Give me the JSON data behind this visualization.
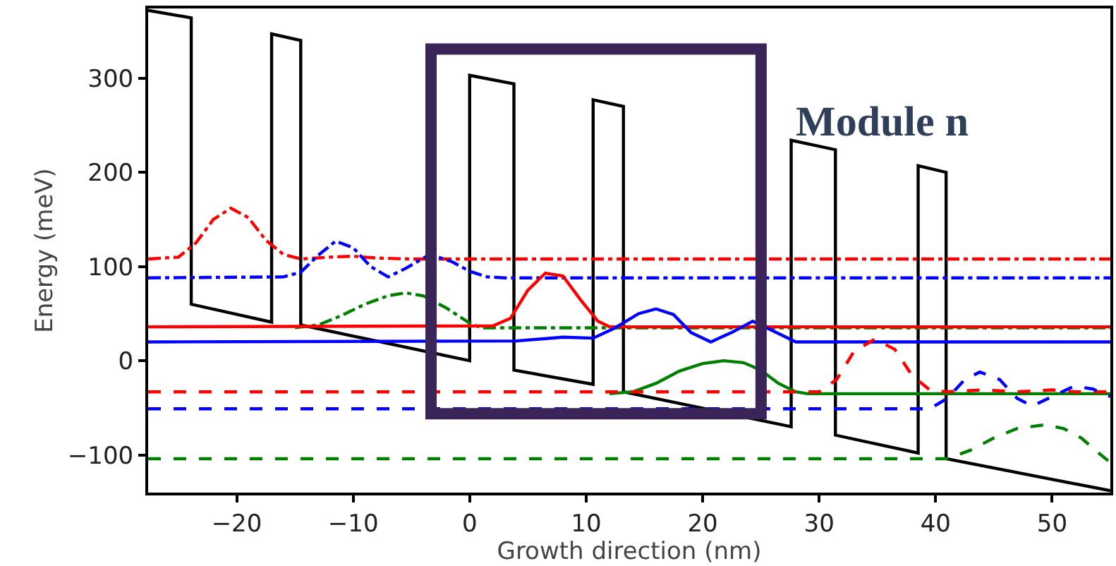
{
  "chart_data": {
    "type": "line",
    "xlabel": "Growth direction (nm)",
    "ylabel": "Energy (meV)",
    "xlim": [
      -27.6,
      55
    ],
    "ylim": [
      -140,
      374
    ],
    "xticks": [
      {
        "value": -20,
        "label": "−20"
      },
      {
        "value": -10,
        "label": "−10"
      },
      0,
      10,
      20,
      30,
      40,
      50
    ],
    "yticks": [
      {
        "value": -100,
        "label": "−100"
      },
      0,
      100,
      200,
      300
    ],
    "marker": "none",
    "annotations": [
      "Module n"
    ],
    "series": [
      {
        "color": "#000000",
        "line_style": "solid",
        "x": [
          -27.6,
          -23.9,
          -23.9,
          -17,
          -17,
          -14.5,
          -14.5,
          0,
          0,
          3.8,
          3.8,
          10.6,
          10.6,
          13.2,
          13.2,
          27.6,
          27.6,
          31.4,
          31.4,
          38.5,
          38.5,
          40.9,
          40.9,
          55
        ],
        "values": [
          372,
          364,
          60,
          41,
          347,
          340,
          38,
          0,
          303,
          294,
          -10,
          -25,
          277,
          270,
          -33,
          -70,
          234,
          224,
          -79,
          -98,
          207,
          200,
          -104,
          -138
        ]
      },
      {
        "color": "#ff0000",
        "line_style": "dashdot",
        "x": [
          -27.6,
          -25,
          -23.5,
          -22,
          -20.5,
          -19,
          -17.5,
          -16,
          -14.5,
          -12,
          -10,
          -8,
          -5,
          55
        ],
        "values": [
          108,
          110,
          125,
          150,
          162,
          152,
          128,
          113,
          108,
          110,
          111,
          109,
          108,
          108
        ]
      },
      {
        "color": "#0000ff",
        "line_style": "dashdot",
        "x": [
          -27.6,
          -16,
          -14.5,
          -13,
          -11.5,
          -10,
          -8.5,
          -7,
          -5.5,
          -3.4,
          -1.5,
          0,
          1.5,
          3,
          55
        ],
        "values": [
          88,
          89,
          94,
          112,
          127,
          120,
          100,
          89,
          98,
          113,
          105,
          95,
          89,
          88,
          88
        ]
      },
      {
        "color": "#008000",
        "line_style": "dashdot",
        "x": [
          -15,
          -13,
          -11,
          -9,
          -7,
          -5.5,
          -4,
          -2,
          0,
          1,
          55
        ],
        "values": [
          35,
          38,
          48,
          60,
          69,
          72,
          69,
          56,
          40,
          35,
          35
        ]
      },
      {
        "color": "#ff0000",
        "line_style": "solid",
        "x": [
          -27.6,
          2,
          3.5,
          5,
          6.5,
          8,
          9.5,
          11,
          12,
          55
        ],
        "values": [
          36,
          37,
          45,
          75,
          93,
          90,
          65,
          42,
          36,
          36
        ]
      },
      {
        "color": "#0000ff",
        "line_style": "solid",
        "x": [
          -27.6,
          4,
          8,
          10.6,
          12.5,
          14.5,
          16,
          17.5,
          19,
          20.7,
          22.5,
          24.3,
          26,
          28,
          55
        ],
        "values": [
          20,
          21,
          25,
          24,
          35,
          50,
          55,
          49,
          30,
          20,
          30,
          42,
          32,
          20,
          20
        ]
      },
      {
        "color": "#008000",
        "line_style": "solid",
        "x": [
          12,
          14,
          16,
          18,
          20,
          21.8,
          23.5,
          25,
          26.5,
          28,
          29,
          55
        ],
        "values": [
          -35,
          -33,
          -24,
          -11,
          -3,
          0,
          -2,
          -10,
          -24,
          -33,
          -35,
          -35
        ]
      },
      {
        "color": "#ff0000",
        "line_style": "dashed",
        "x": [
          -27.6,
          30,
          31.5,
          33,
          34.8,
          36.5,
          38,
          39.5,
          41,
          44,
          47,
          50,
          52,
          55
        ],
        "values": [
          -33,
          -33,
          -20,
          10,
          23,
          12,
          -16,
          -31,
          -33,
          -31,
          -33,
          -31,
          -33,
          -33
        ]
      },
      {
        "color": "#0000ff",
        "line_style": "dashed",
        "x": [
          -27.6,
          39.5,
          41,
          42.5,
          43.8,
          45.5,
          47,
          48.3,
          50,
          51.9,
          53.5,
          55
        ],
        "values": [
          -51,
          -51,
          -40,
          -20,
          -12,
          -20,
          -40,
          -48,
          -38,
          -27,
          -30,
          -38
        ]
      },
      {
        "color": "#008000",
        "line_style": "dashed",
        "x": [
          -27.6,
          41,
          43,
          45,
          47,
          49.4,
          51,
          52.5,
          54,
          55
        ],
        "values": [
          -104,
          -104,
          -95,
          -82,
          -72,
          -68,
          -72,
          -82,
          -98,
          -108
        ]
      }
    ]
  }
}
